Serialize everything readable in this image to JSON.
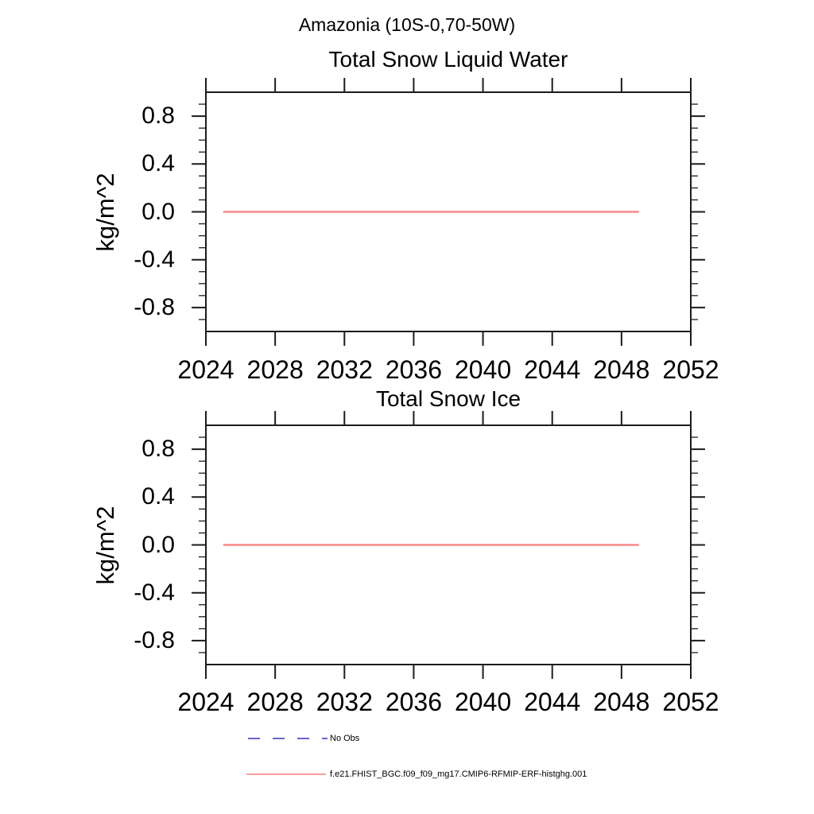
{
  "page_title": "Amazonia (10S-0,70-50W)",
  "colors": {
    "background": "#ffffff",
    "axis": "#1c1c1c",
    "series_red": "#fb7d7d",
    "no_obs_blue": "#6666cc",
    "text": "#000000"
  },
  "chart_data": [
    {
      "type": "line",
      "title": "Total Snow Liquid Water",
      "xlabel": "",
      "ylabel": "kg/m^2",
      "xlim": [
        2024,
        2052
      ],
      "ylim": [
        -1.0,
        1.0
      ],
      "grid": false,
      "x_tick_values": [
        2024,
        2028,
        2032,
        2036,
        2040,
        2044,
        2048,
        2052
      ],
      "x_tick_labels": [
        "2024",
        "2028",
        "2032",
        "2036",
        "2040",
        "2044",
        "2048",
        "2052"
      ],
      "y_tick_values": [
        0.8,
        0.4,
        0.0,
        -0.4,
        -0.8
      ],
      "y_tick_labels": [
        "0.8",
        "0.4",
        "0.0",
        "-0.4",
        "-0.8"
      ],
      "y_minor_tick_step": 0.1,
      "series": [
        {
          "name": "f.e21.FHIST_BGC.f09_f09_mg17.CMIP6-RFMIP-ERF-histghg.001",
          "color": "#fb7d7d",
          "x": [
            2025,
            2049
          ],
          "y": [
            0.0,
            0.0
          ]
        }
      ]
    },
    {
      "type": "line",
      "title": "Total Snow Ice",
      "xlabel": "",
      "ylabel": "kg/m^2",
      "xlim": [
        2024,
        2052
      ],
      "ylim": [
        -1.0,
        1.0
      ],
      "grid": false,
      "x_tick_values": [
        2024,
        2028,
        2032,
        2036,
        2040,
        2044,
        2048,
        2052
      ],
      "x_tick_labels": [
        "2024",
        "2028",
        "2032",
        "2036",
        "2040",
        "2044",
        "2048",
        "2052"
      ],
      "y_tick_values": [
        0.8,
        0.4,
        0.0,
        -0.4,
        -0.8
      ],
      "y_tick_labels": [
        "0.8",
        "0.4",
        "0.0",
        "-0.4",
        "-0.8"
      ],
      "y_minor_tick_step": 0.1,
      "series": [
        {
          "name": "f.e21.FHIST_BGC.f09_f09_mg17.CMIP6-RFMIP-ERF-histghg.001",
          "color": "#fb7d7d",
          "x": [
            2025,
            2049
          ],
          "y": [
            0.0,
            0.0
          ]
        }
      ]
    }
  ],
  "legend": [
    {
      "label": "No Obs",
      "style": "dashed",
      "color": "#6666cc"
    },
    {
      "label": "f.e21.FHIST_BGC.f09_f09_mg17.CMIP6-RFMIP-ERF-histghg.001",
      "style": "solid",
      "color": "#fb7d7d"
    }
  ]
}
